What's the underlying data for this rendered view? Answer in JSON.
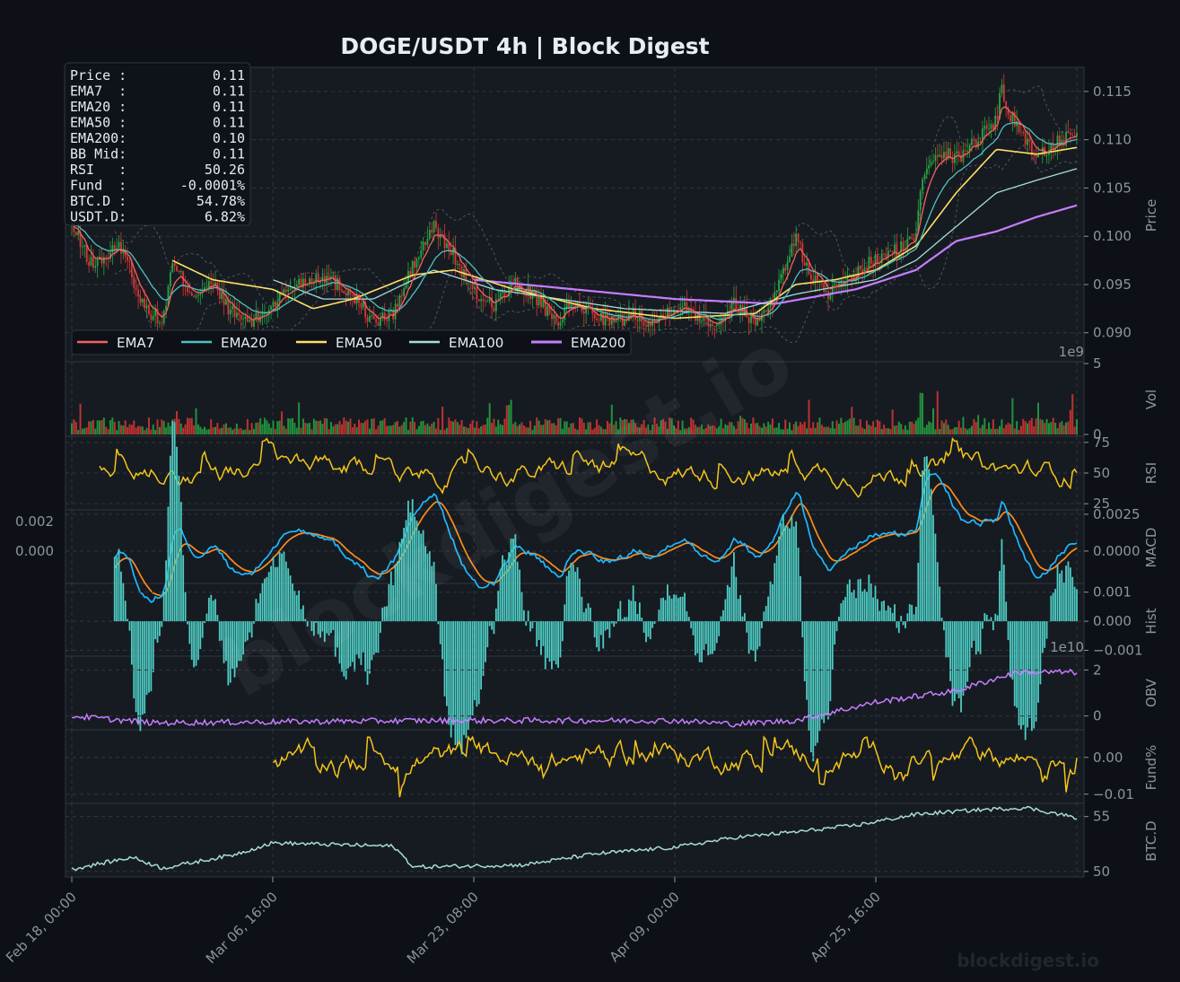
{
  "colors": {
    "background": "#0d1117",
    "panel": "#161b22",
    "grid": "#30363d",
    "up": "#26a641",
    "down": "#da3633",
    "ema7": "#f85f5f",
    "ema20": "#4fc1c0",
    "ema50": "#ffe066",
    "ema100": "#a8dcd8",
    "ema200": "#c77dff",
    "rsi": "#f5c518",
    "macd": "#1fb8ff",
    "signal": "#ff8c1a",
    "hist": "#4ecdc4",
    "obv": "#c77dff",
    "funding": "#f5c518",
    "btcd": "#a8dcd8"
  },
  "title": "DOGE/USDT  4h  |  Block Digest",
  "watermark": "blockdigest.io",
  "watermark_diagonal": "blockdigest.io",
  "info_box": [
    {
      "label": "Price :",
      "value": "0.11"
    },
    {
      "label": "EMA7  :",
      "value": "0.11"
    },
    {
      "label": "EMA20 :",
      "value": "0.11"
    },
    {
      "label": "EMA50 :",
      "value": "0.11"
    },
    {
      "label": "EMA200:",
      "value": "0.10"
    },
    {
      "label": "BB Mid:",
      "value": "0.11"
    },
    {
      "label": "RSI   :",
      "value": "50.26"
    },
    {
      "label": "Fund  :",
      "value": "-0.0001%"
    },
    {
      "label": "BTC.D :",
      "value": "54.78%"
    },
    {
      "label": "USDT.D:",
      "value": "6.82%"
    }
  ],
  "chart_data": {
    "type": "line",
    "x_ticks": [
      "Feb 18, 00:00",
      "Mar 06, 16:00",
      "Mar 23, 08:00",
      "Apr 09, 00:00",
      "Apr 25, 16:00"
    ],
    "panels": [
      {
        "id": "price",
        "ylabel": "Price",
        "ylim": [
          0.087,
          0.1175
        ],
        "yticks": [
          "0.090",
          "0.095",
          "0.100",
          "0.105",
          "0.110",
          "0.115"
        ],
        "ytick_values": [
          0.09,
          0.095,
          0.1,
          0.105,
          0.11,
          0.115
        ],
        "price_anchors": [
          [
            0,
            0.101
          ],
          [
            0.02,
            0.097
          ],
          [
            0.05,
            0.099
          ],
          [
            0.07,
            0.093
          ],
          [
            0.09,
            0.091
          ],
          [
            0.1,
            0.097
          ],
          [
            0.12,
            0.094
          ],
          [
            0.14,
            0.095
          ],
          [
            0.16,
            0.092
          ],
          [
            0.18,
            0.091
          ],
          [
            0.2,
            0.093
          ],
          [
            0.22,
            0.095
          ],
          [
            0.25,
            0.096
          ],
          [
            0.28,
            0.094
          ],
          [
            0.3,
            0.091
          ],
          [
            0.32,
            0.092
          ],
          [
            0.34,
            0.097
          ],
          [
            0.36,
            0.101
          ],
          [
            0.38,
            0.098
          ],
          [
            0.4,
            0.094
          ],
          [
            0.42,
            0.093
          ],
          [
            0.44,
            0.095
          ],
          [
            0.46,
            0.094
          ],
          [
            0.48,
            0.091
          ],
          [
            0.5,
            0.093
          ],
          [
            0.52,
            0.092
          ],
          [
            0.54,
            0.091
          ],
          [
            0.56,
            0.092
          ],
          [
            0.58,
            0.091
          ],
          [
            0.6,
            0.093
          ],
          [
            0.62,
            0.092
          ],
          [
            0.64,
            0.091
          ],
          [
            0.66,
            0.093
          ],
          [
            0.68,
            0.091
          ],
          [
            0.7,
            0.094
          ],
          [
            0.71,
            0.097
          ],
          [
            0.72,
            0.1
          ],
          [
            0.73,
            0.097
          ],
          [
            0.75,
            0.094
          ],
          [
            0.77,
            0.095
          ],
          [
            0.79,
            0.097
          ],
          [
            0.81,
            0.098
          ],
          [
            0.83,
            0.099
          ],
          [
            0.84,
            0.1
          ],
          [
            0.845,
            0.106
          ],
          [
            0.86,
            0.109
          ],
          [
            0.88,
            0.108
          ],
          [
            0.9,
            0.11
          ],
          [
            0.92,
            0.112
          ],
          [
            0.925,
            0.116
          ],
          [
            0.93,
            0.113
          ],
          [
            0.95,
            0.11
          ],
          [
            0.96,
            0.108
          ],
          [
            0.98,
            0.11
          ],
          [
            1.0,
            0.11
          ]
        ],
        "ema200_anchors": [
          [
            0.4,
            0.0955
          ],
          [
            0.5,
            0.0945
          ],
          [
            0.6,
            0.0935
          ],
          [
            0.7,
            0.093
          ],
          [
            0.78,
            0.0945
          ],
          [
            0.84,
            0.0965
          ],
          [
            0.88,
            0.0995
          ],
          [
            0.92,
            0.1005
          ],
          [
            0.96,
            0.102
          ],
          [
            1.0,
            0.1032
          ]
        ],
        "ema100_anchors": [
          [
            0.2,
            0.0955
          ],
          [
            0.25,
            0.0935
          ],
          [
            0.3,
            0.0935
          ],
          [
            0.36,
            0.0965
          ],
          [
            0.42,
            0.0945
          ],
          [
            0.55,
            0.0925
          ],
          [
            0.65,
            0.092
          ],
          [
            0.72,
            0.094
          ],
          [
            0.8,
            0.0955
          ],
          [
            0.84,
            0.0975
          ],
          [
            0.88,
            0.101
          ],
          [
            0.92,
            0.1045
          ],
          [
            0.96,
            0.1058
          ],
          [
            1.0,
            0.107
          ]
        ],
        "ema50_anchors": [
          [
            0.1,
            0.0975
          ],
          [
            0.14,
            0.0955
          ],
          [
            0.2,
            0.0945
          ],
          [
            0.24,
            0.0925
          ],
          [
            0.28,
            0.0935
          ],
          [
            0.34,
            0.096
          ],
          [
            0.38,
            0.0965
          ],
          [
            0.44,
            0.0945
          ],
          [
            0.52,
            0.0925
          ],
          [
            0.6,
            0.0915
          ],
          [
            0.68,
            0.092
          ],
          [
            0.72,
            0.095
          ],
          [
            0.76,
            0.0955
          ],
          [
            0.8,
            0.0965
          ],
          [
            0.84,
            0.099
          ],
          [
            0.88,
            0.1045
          ],
          [
            0.92,
            0.109
          ],
          [
            0.96,
            0.1085
          ],
          [
            1.0,
            0.1092
          ]
        ],
        "legend": [
          "EMA7",
          "EMA20",
          "EMA50",
          "EMA100",
          "EMA200"
        ]
      },
      {
        "id": "volume",
        "ylabel": "Vol",
        "scale_label": "1e9",
        "yticks": [
          "0",
          "5"
        ],
        "ytick_values": [
          0,
          5
        ]
      },
      {
        "id": "rsi",
        "ylabel": "RSI",
        "yticks": [
          "25",
          "50",
          "75"
        ],
        "ytick_values": [
          25,
          50,
          75
        ],
        "last_value": 50.26
      },
      {
        "id": "macd",
        "ylabel": "MACD",
        "yticks_left": [
          "0.002",
          "0.000"
        ],
        "yticks_right": [
          "0.0025",
          "0.0000"
        ],
        "ytick_values": [
          0.0025,
          0.0
        ]
      },
      {
        "id": "hist",
        "ylabel": "Hist",
        "scale_label": "1e10",
        "yticks": [
          "0.001",
          "0.000",
          "−0.001"
        ],
        "ytick_values": [
          0.001,
          0.0,
          -0.001
        ]
      },
      {
        "id": "obv",
        "ylabel": "OBV",
        "yticks": [
          "2",
          "0"
        ],
        "ytick_values": [
          2,
          0
        ]
      },
      {
        "id": "funding",
        "ylabel": "Fund%",
        "yticks": [
          "0.00",
          "−0.01"
        ],
        "ytick_values": [
          0.0,
          -0.01
        ],
        "last_value": -0.0001
      },
      {
        "id": "btcd",
        "ylabel": "BTC.D",
        "yticks": [
          "55",
          "50"
        ],
        "ytick_values": [
          55,
          50
        ],
        "last_value": 54.78
      }
    ]
  }
}
